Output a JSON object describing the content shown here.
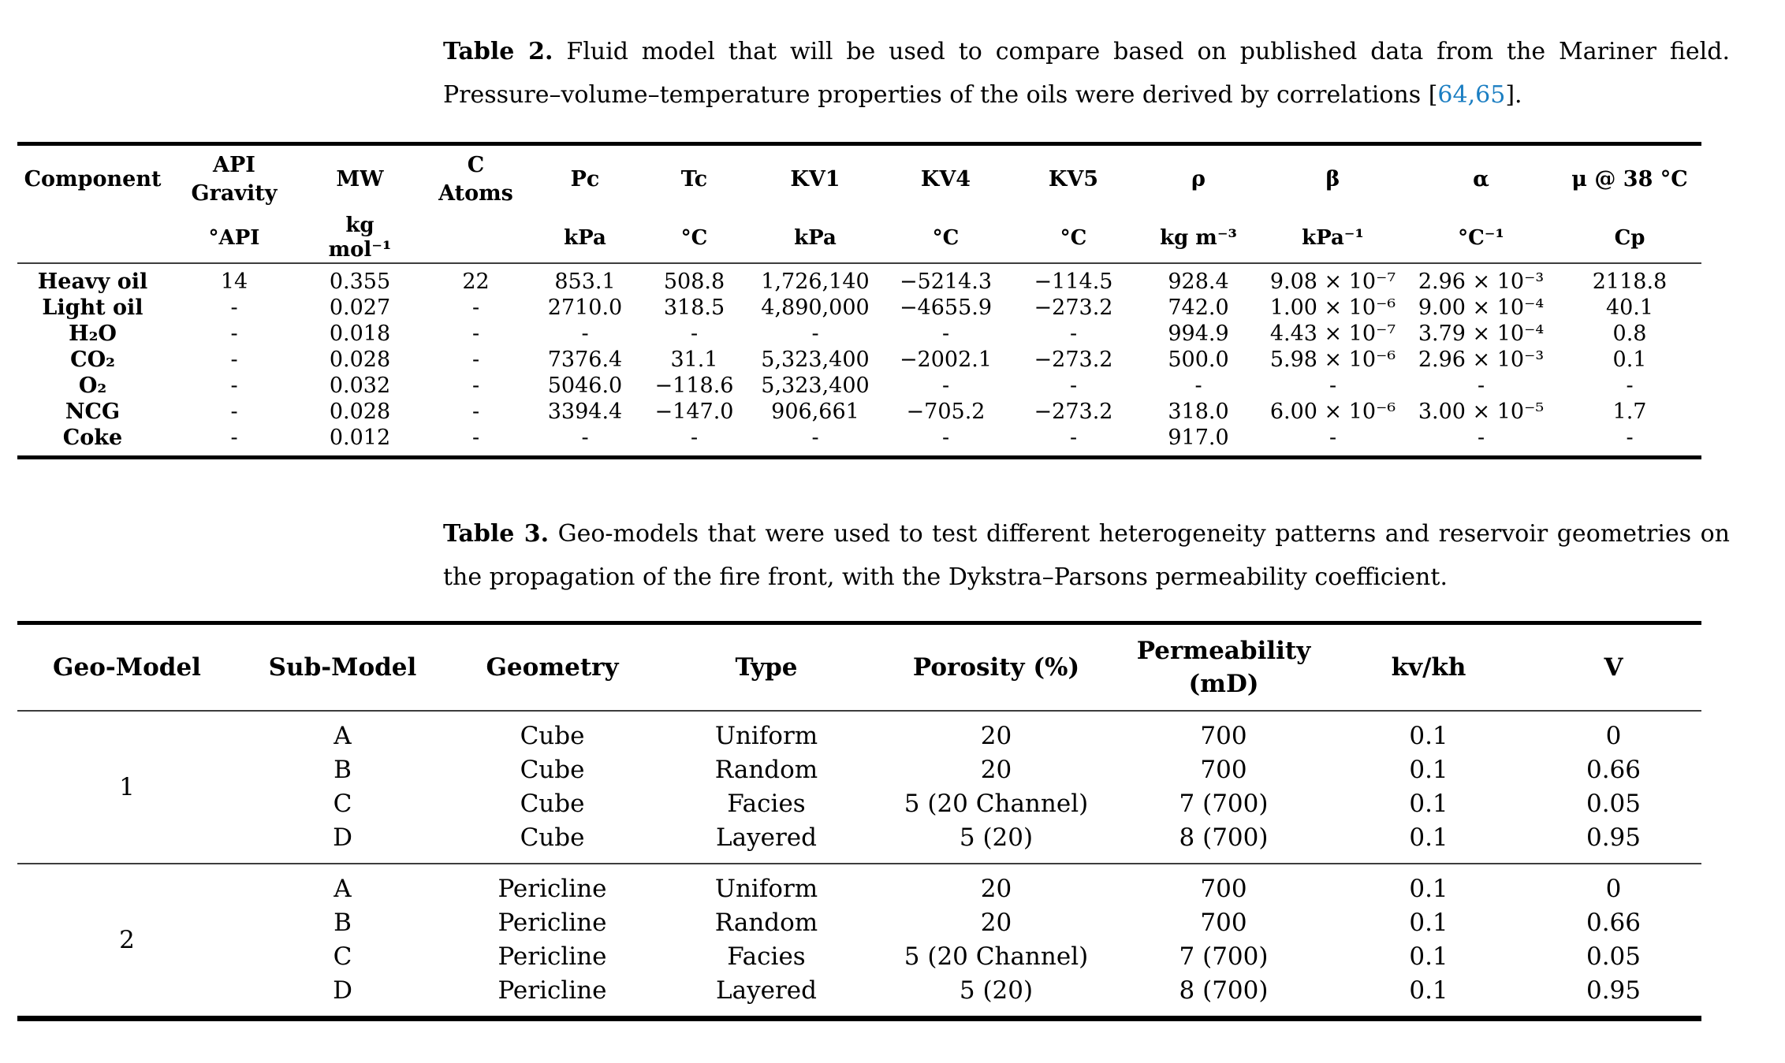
{
  "page": {
    "background": "#ffffff",
    "text_color": "#000000",
    "link_color": "#1b7ec2"
  },
  "table2": {
    "caption": {
      "label": "Table 2.",
      "text": " Fluid model that will be used to compare based on published data from the Mariner field. Pressure–volume–temperature properties of the oils were derived by correlations [",
      "ref1": "64",
      "separator": ",",
      "ref2": "65",
      "suffix": "]."
    },
    "columns": [
      {
        "name": "Component",
        "unit": ""
      },
      {
        "name": "API\nGravity",
        "unit": "°API"
      },
      {
        "name": "MW",
        "unit": "kg\nmol⁻¹"
      },
      {
        "name": "C\nAtoms",
        "unit": ""
      },
      {
        "name": "Pc",
        "unit": "kPa"
      },
      {
        "name": "Tc",
        "unit": "°C"
      },
      {
        "name": "KV1",
        "unit": "kPa"
      },
      {
        "name": "KV4",
        "unit": "°C"
      },
      {
        "name": "KV5",
        "unit": "°C"
      },
      {
        "name": "ρ",
        "unit": "kg m⁻³"
      },
      {
        "name": "β",
        "unit": "kPa⁻¹"
      },
      {
        "name": "α",
        "unit": "°C⁻¹"
      },
      {
        "name": "μ @ 38 °C",
        "unit": "Cp"
      }
    ],
    "rows": [
      [
        "Heavy oil",
        "14",
        "0.355",
        "22",
        "853.1",
        "508.8",
        "1,726,140",
        "−5214.3",
        "−114.5",
        "928.4",
        "9.08 × 10⁻⁷",
        "2.96 × 10⁻³",
        "2118.8"
      ],
      [
        "Light oil",
        "-",
        "0.027",
        "-",
        "2710.0",
        "318.5",
        "4,890,000",
        "−4655.9",
        "−273.2",
        "742.0",
        "1.00 × 10⁻⁶",
        "9.00 × 10⁻⁴",
        "40.1"
      ],
      [
        "H₂O",
        "-",
        "0.018",
        "-",
        "-",
        "-",
        "-",
        "-",
        "-",
        "994.9",
        "4.43 × 10⁻⁷",
        "3.79 × 10⁻⁴",
        "0.8"
      ],
      [
        "CO₂",
        "-",
        "0.028",
        "-",
        "7376.4",
        "31.1",
        "5,323,400",
        "−2002.1",
        "−273.2",
        "500.0",
        "5.98 × 10⁻⁶",
        "2.96 × 10⁻³",
        "0.1"
      ],
      [
        "O₂",
        "-",
        "0.032",
        "-",
        "5046.0",
        "−118.6",
        "5,323,400",
        "-",
        "-",
        "-",
        "-",
        "-",
        "-"
      ],
      [
        "NCG",
        "-",
        "0.028",
        "-",
        "3394.4",
        "−147.0",
        "906,661",
        "−705.2",
        "−273.2",
        "318.0",
        "6.00 × 10⁻⁶",
        "3.00 × 10⁻⁵",
        "1.7"
      ],
      [
        "Coke",
        "-",
        "0.012",
        "-",
        "-",
        "-",
        "-",
        "-",
        "-",
        "917.0",
        "-",
        "-",
        "-"
      ]
    ]
  },
  "table3": {
    "caption": {
      "label": "Table 3.",
      "text": " Geo-models that were used to test different heterogeneity patterns and reservoir geometries on the propagation of the fire front, with the Dykstra–Parsons permeability coefficient."
    },
    "columns": [
      "Geo-Model",
      "Sub-Model",
      "Geometry",
      "Type",
      "Porosity (%)",
      "Permeability\n(mD)",
      "kv/kh",
      "V"
    ],
    "groups": [
      {
        "label": "1",
        "rows": [
          [
            "A",
            "Cube",
            "Uniform",
            "20",
            "700",
            "0.1",
            "0"
          ],
          [
            "B",
            "Cube",
            "Random",
            "20",
            "700",
            "0.1",
            "0.66"
          ],
          [
            "C",
            "Cube",
            "Facies",
            "5 (20 Channel)",
            "7 (700)",
            "0.1",
            "0.05"
          ],
          [
            "D",
            "Cube",
            "Layered",
            "5 (20)",
            "8 (700)",
            "0.1",
            "0.95"
          ]
        ]
      },
      {
        "label": "2",
        "rows": [
          [
            "A",
            "Pericline",
            "Uniform",
            "20",
            "700",
            "0.1",
            "0"
          ],
          [
            "B",
            "Pericline",
            "Random",
            "20",
            "700",
            "0.1",
            "0.66"
          ],
          [
            "C",
            "Pericline",
            "Facies",
            "5 (20 Channel)",
            "7 (700)",
            "0.1",
            "0.05"
          ],
          [
            "D",
            "Pericline",
            "Layered",
            "5 (20)",
            "8 (700)",
            "0.1",
            "0.95"
          ]
        ]
      }
    ]
  }
}
